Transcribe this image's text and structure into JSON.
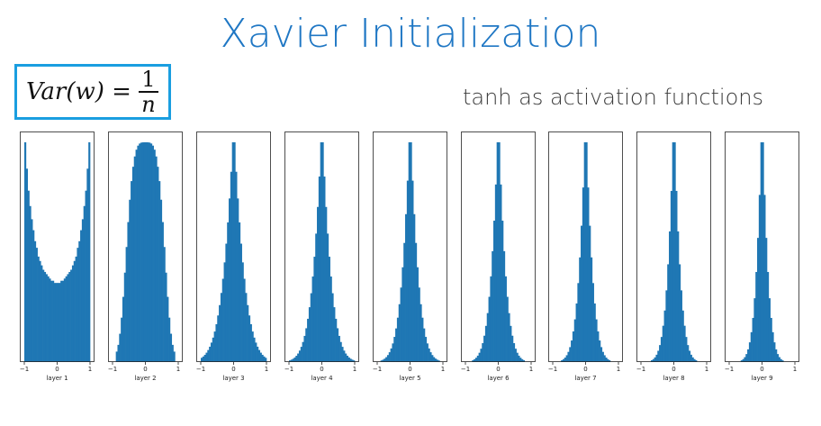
{
  "title": "Xavier Initialization",
  "formula": {
    "lhs": "Var(w) =",
    "numerator": "1",
    "denominator": "n"
  },
  "subtitle": "tanh as activation functions",
  "colors": {
    "title": "#1f77c4",
    "box_border": "#1a9ee0",
    "bars": "#1f77b4"
  },
  "chart_data": [
    {
      "type": "bar",
      "xlabel": "layer 1",
      "xlim": [
        -1,
        1
      ],
      "xticks": [
        -1,
        0,
        1
      ],
      "shape": "u",
      "categories": [
        -0.975,
        -0.925,
        -0.875,
        -0.825,
        -0.775,
        -0.725,
        -0.675,
        -0.625,
        -0.575,
        -0.525,
        -0.475,
        -0.425,
        -0.375,
        -0.325,
        -0.275,
        -0.225,
        -0.175,
        -0.125,
        -0.075,
        -0.025,
        0.025,
        0.075,
        0.125,
        0.175,
        0.225,
        0.275,
        0.325,
        0.375,
        0.425,
        0.475,
        0.525,
        0.575,
        0.625,
        0.675,
        0.725,
        0.775,
        0.825,
        0.875,
        0.925,
        0.975
      ],
      "values": [
        1.0,
        0.88,
        0.78,
        0.71,
        0.65,
        0.6,
        0.55,
        0.52,
        0.48,
        0.46,
        0.44,
        0.42,
        0.41,
        0.4,
        0.39,
        0.38,
        0.37,
        0.37,
        0.36,
        0.36,
        0.36,
        0.36,
        0.37,
        0.37,
        0.38,
        0.39,
        0.4,
        0.41,
        0.42,
        0.44,
        0.46,
        0.48,
        0.52,
        0.55,
        0.6,
        0.65,
        0.71,
        0.78,
        0.88,
        1.0
      ]
    },
    {
      "type": "bar",
      "xlabel": "layer 2",
      "xlim": [
        -1,
        1
      ],
      "xticks": [
        -1,
        0,
        1
      ],
      "shape": "dome",
      "sigma": 0.62
    },
    {
      "type": "bar",
      "xlabel": "layer 3",
      "xlim": [
        -1,
        1
      ],
      "xticks": [
        -1,
        0,
        1
      ],
      "shape": "peak",
      "sigma": 0.42
    },
    {
      "type": "bar",
      "xlabel": "layer 4",
      "xlim": [
        -1,
        1
      ],
      "xticks": [
        -1,
        0,
        1
      ],
      "shape": "peak",
      "sigma": 0.36
    },
    {
      "type": "bar",
      "xlabel": "layer 5",
      "xlim": [
        -1,
        1
      ],
      "xticks": [
        -1,
        0,
        1
      ],
      "shape": "peak",
      "sigma": 0.32
    },
    {
      "type": "bar",
      "xlabel": "layer 6",
      "xlim": [
        -1,
        1
      ],
      "xticks": [
        -1,
        0,
        1
      ],
      "shape": "peak",
      "sigma": 0.29
    },
    {
      "type": "bar",
      "xlabel": "layer 7",
      "xlim": [
        -1,
        1
      ],
      "xticks": [
        -1,
        0,
        1
      ],
      "shape": "peak",
      "sigma": 0.27
    },
    {
      "type": "bar",
      "xlabel": "layer 8",
      "xlim": [
        -1,
        1
      ],
      "xticks": [
        -1,
        0,
        1
      ],
      "shape": "peak",
      "sigma": 0.25
    },
    {
      "type": "bar",
      "xlabel": "layer 9",
      "xlim": [
        -1,
        1
      ],
      "xticks": [
        -1,
        0,
        1
      ],
      "shape": "peak",
      "sigma": 0.23
    }
  ]
}
